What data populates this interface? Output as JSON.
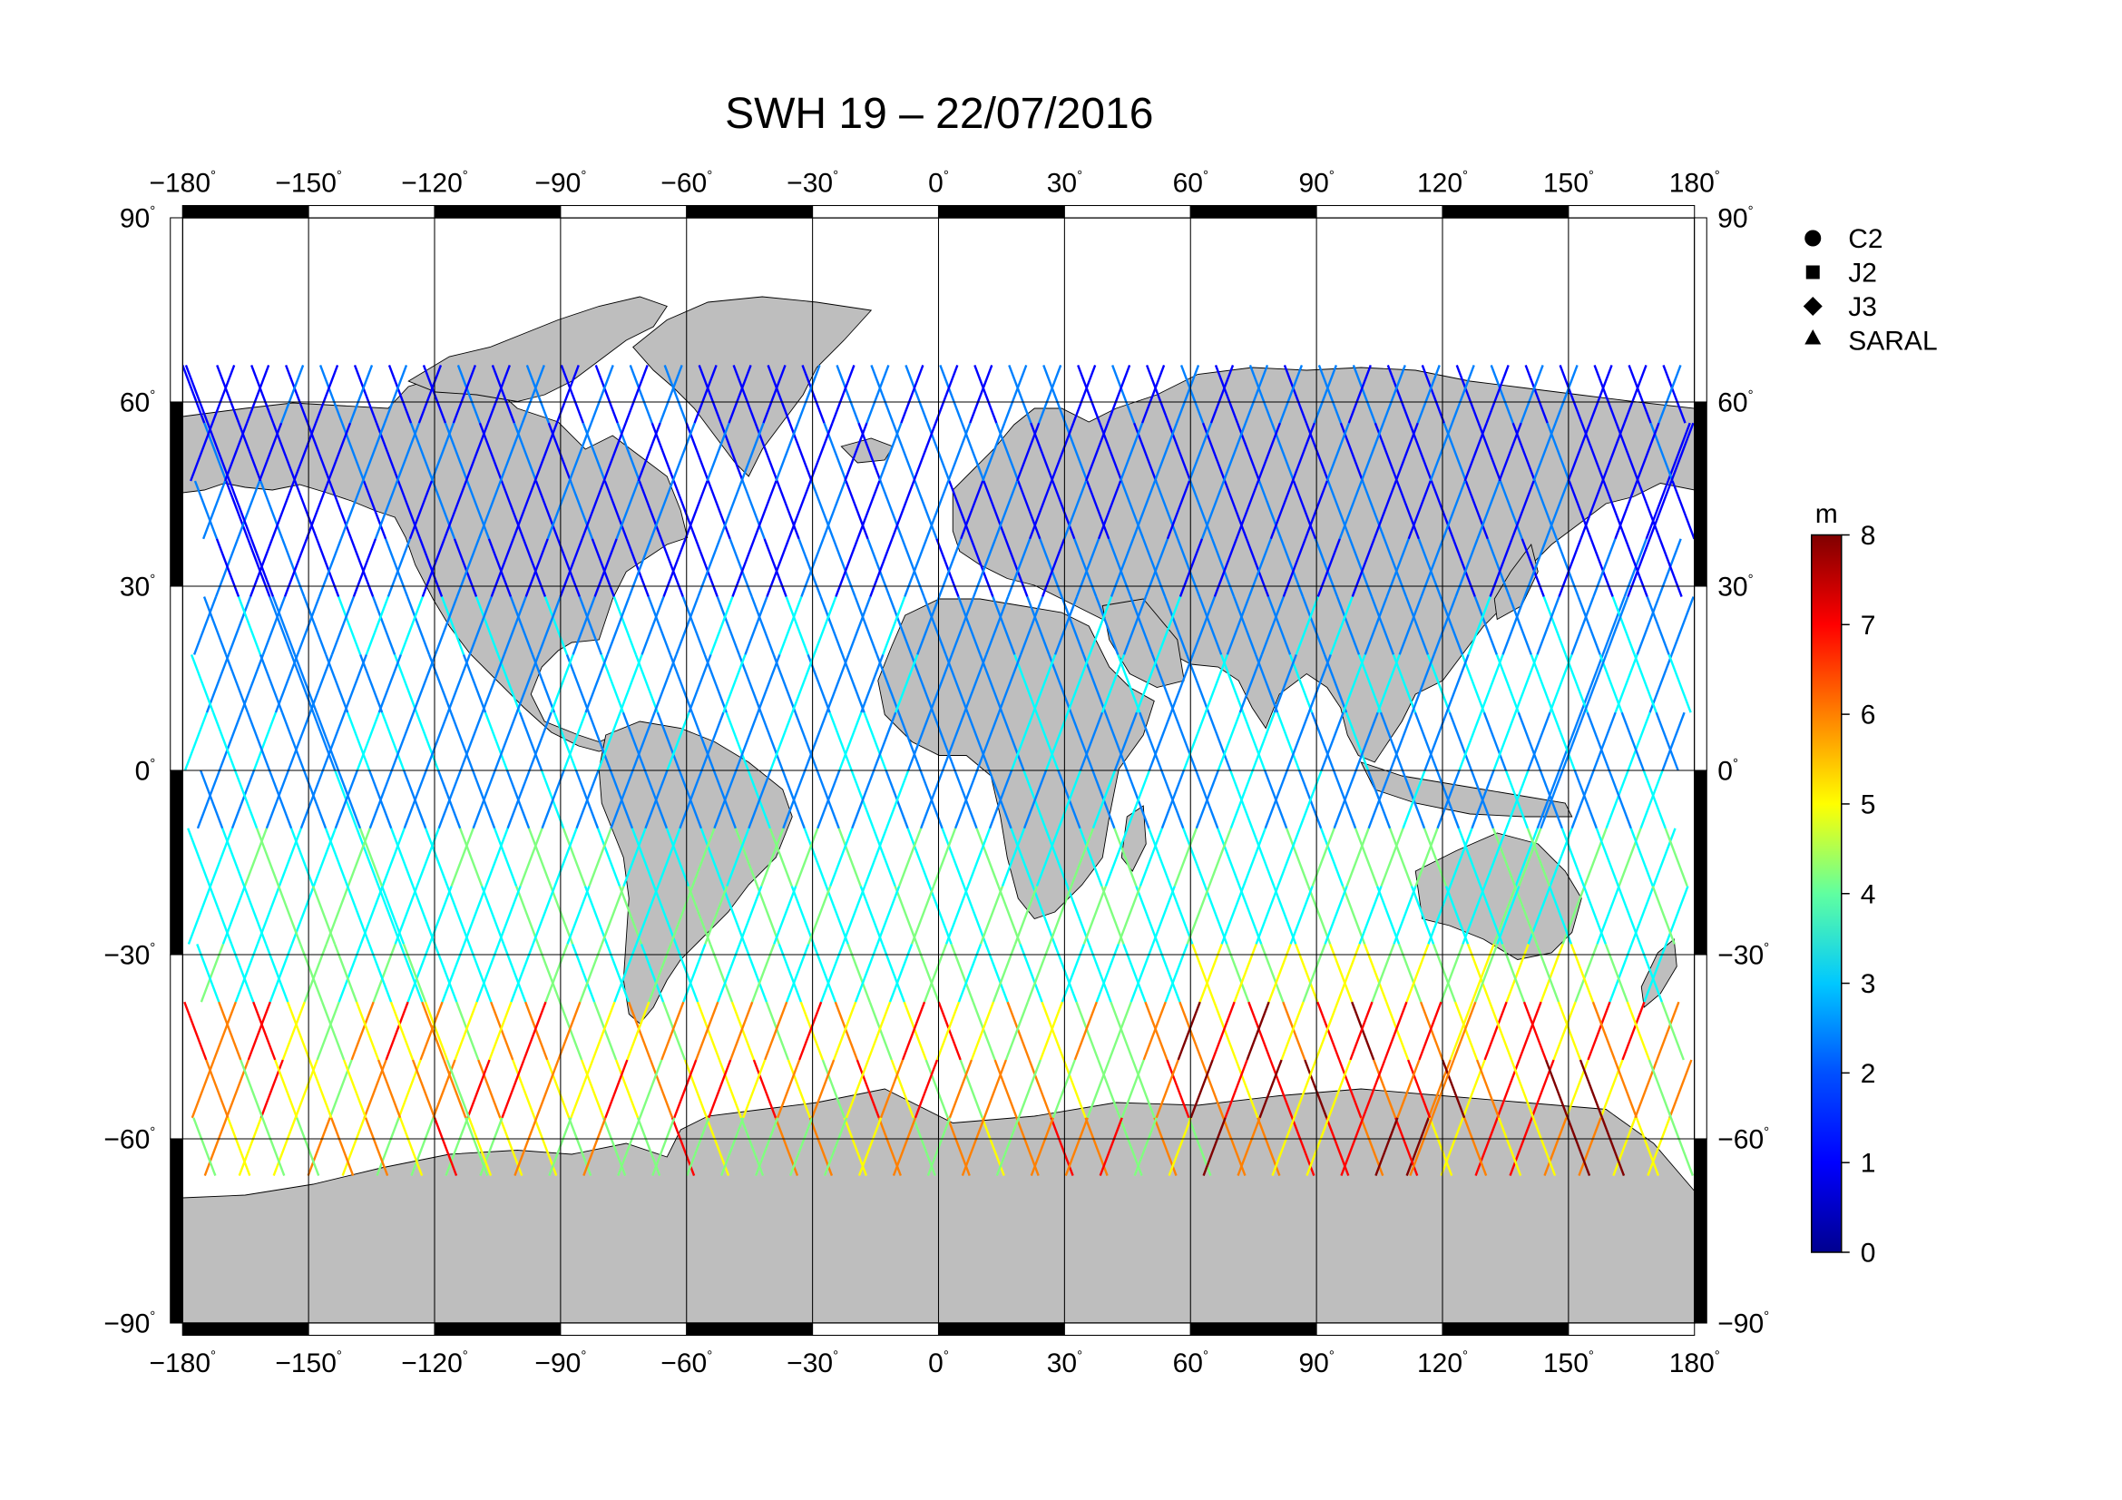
{
  "title": "SWH 19 – 22/07/2016",
  "map": {
    "projection": "equirectangular",
    "lon_range": [
      -180,
      180
    ],
    "lat_range": [
      -90,
      90
    ],
    "lon_ticks": [
      "−180",
      "−150",
      "−120",
      "−90",
      "−60",
      "−30",
      "0",
      "30",
      "60",
      "90",
      "120",
      "150",
      "180"
    ],
    "lat_ticks": [
      "90",
      "60",
      "30",
      "0",
      "−30",
      "−60",
      "−90"
    ],
    "degree_symbol": "°",
    "land_color": "#bebebe",
    "ocean_color": "#ffffff",
    "grid": true
  },
  "legend": {
    "items": [
      {
        "symbol": "circle",
        "label": "C2"
      },
      {
        "symbol": "square",
        "label": "J2"
      },
      {
        "symbol": "diamond",
        "label": "J3"
      },
      {
        "symbol": "triangle",
        "label": "SARAL"
      }
    ]
  },
  "colorbar": {
    "unit": "m",
    "min": 0,
    "max": 8,
    "ticks": [
      "0",
      "1",
      "2",
      "3",
      "4",
      "5",
      "6",
      "7",
      "8"
    ],
    "colormap": [
      "#00008f",
      "#0000ff",
      "#0080ff",
      "#00ffff",
      "#80ff80",
      "#ffff00",
      "#ff8000",
      "#ff0000",
      "#800000"
    ]
  }
}
